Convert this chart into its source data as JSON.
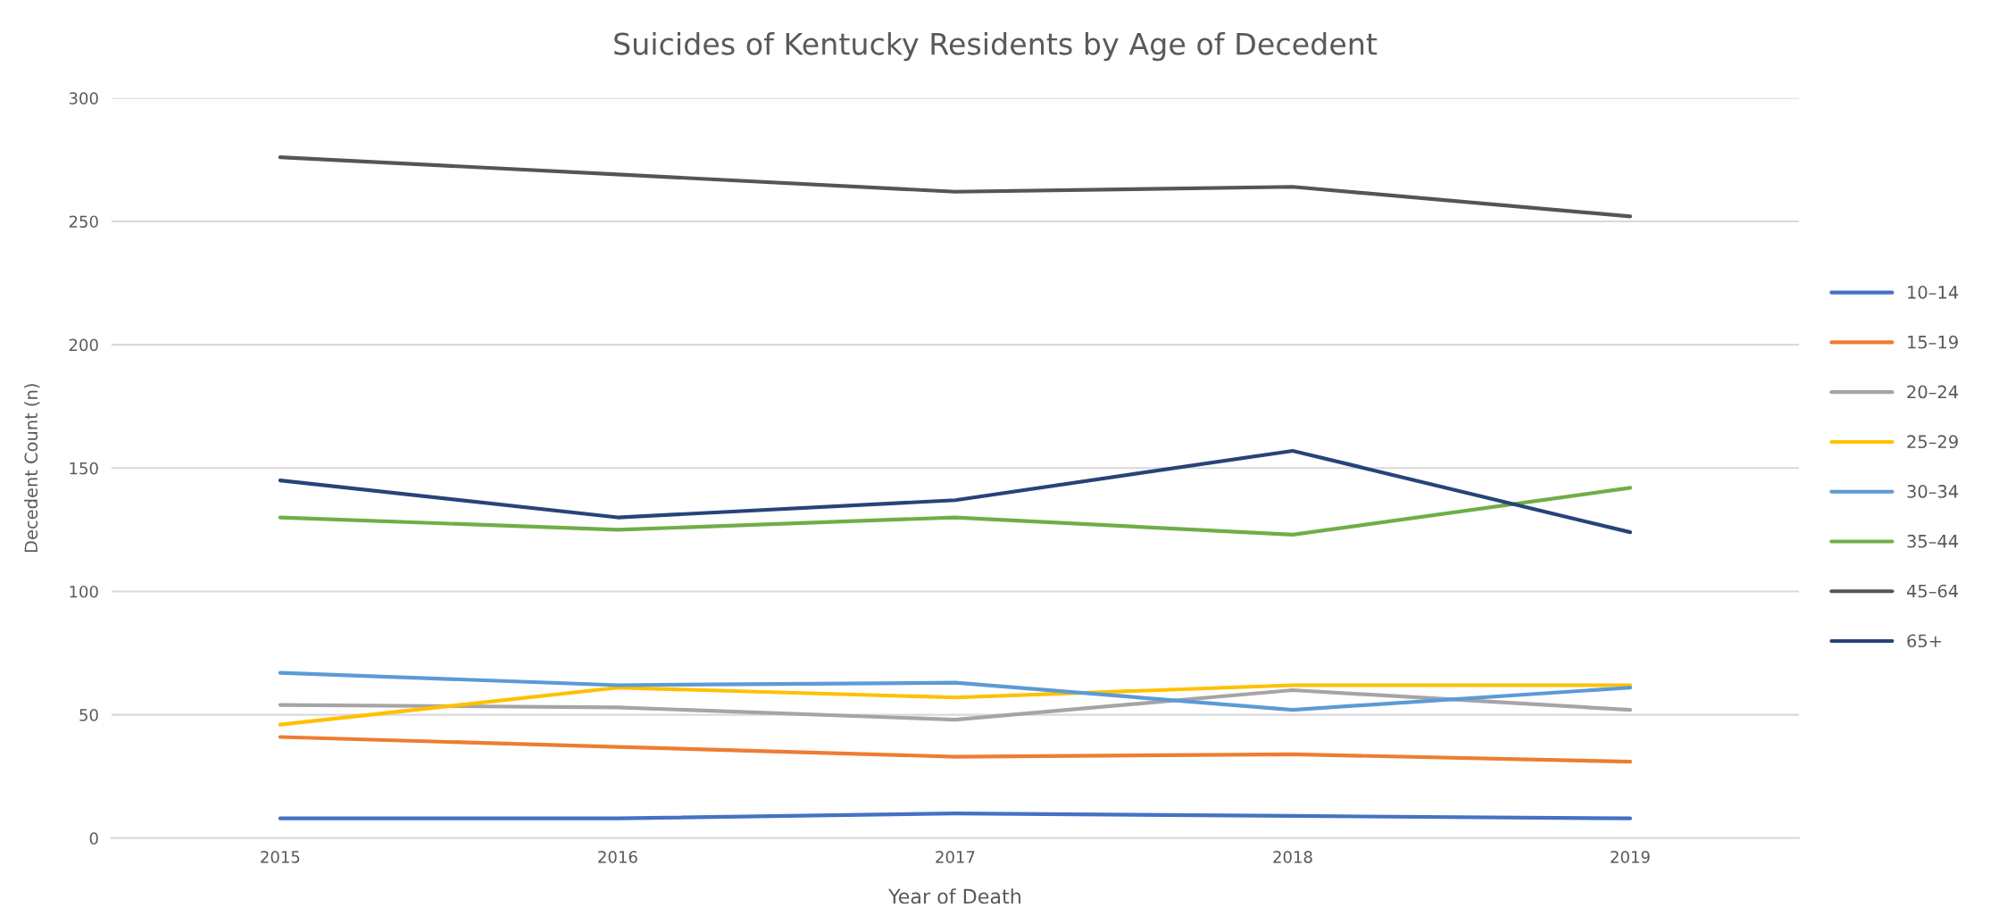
{
  "chart_data": {
    "type": "line",
    "title": "Suicides of Kentucky Residents by Age of Decedent",
    "xlabel": "Year of Death",
    "ylabel": "Decedent Count (n)",
    "categories": [
      "2015",
      "2016",
      "2017",
      "2018",
      "2019"
    ],
    "series": [
      {
        "name": "10–14",
        "color": "#4472c4",
        "values": [
          8,
          8,
          10,
          9,
          8
        ]
      },
      {
        "name": "15–19",
        "color": "#ed7d31",
        "values": [
          41,
          37,
          33,
          34,
          31
        ]
      },
      {
        "name": "20–24",
        "color": "#a5a5a5",
        "values": [
          54,
          53,
          48,
          60,
          52
        ]
      },
      {
        "name": "25–29",
        "color": "#ffc000",
        "values": [
          46,
          61,
          57,
          62,
          62
        ]
      },
      {
        "name": "30–34",
        "color": "#5b9bd5",
        "values": [
          67,
          62,
          63,
          52,
          61
        ]
      },
      {
        "name": "35–44",
        "color": "#70ad47",
        "values": [
          130,
          125,
          130,
          123,
          142
        ]
      },
      {
        "name": "45–64",
        "color": "#555555",
        "values": [
          276,
          269,
          262,
          264,
          252
        ]
      },
      {
        "name": "65+",
        "color": "#264478",
        "values": [
          145,
          130,
          137,
          157,
          124
        ]
      }
    ],
    "ylim": [
      0,
      300
    ],
    "yticks": [
      0,
      50,
      100,
      150,
      200,
      250,
      300
    ],
    "grid": "y",
    "legend": "right",
    "marker": "none",
    "line_style": "solid"
  }
}
